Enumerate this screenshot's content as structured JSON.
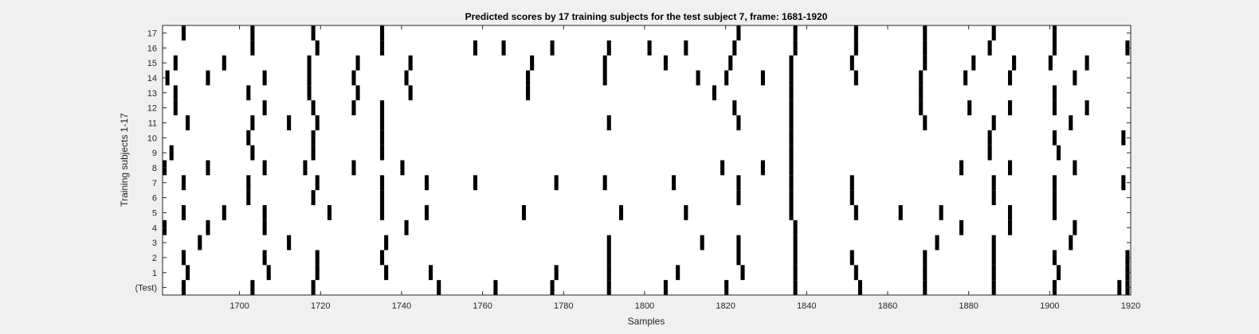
{
  "chart_data": {
    "type": "heatmap",
    "title": "Predicted scores by 17 training subjects for the test subject 7, frame: 1681-1920",
    "xlabel": "Samples",
    "ylabel": "Training subjects 1-17",
    "xlim": [
      1681,
      1920
    ],
    "x_ticks": [
      1700,
      1720,
      1740,
      1760,
      1780,
      1800,
      1820,
      1840,
      1860,
      1880,
      1900,
      1920
    ],
    "y_tick_labels": [
      "(Test)",
      "1",
      "2",
      "3",
      "4",
      "5",
      "6",
      "7",
      "8",
      "9",
      "10",
      "11",
      "12",
      "13",
      "14",
      "15",
      "16",
      "17"
    ],
    "grid": false,
    "colors": {
      "active": "#000000",
      "background": "#ffffff",
      "figure": "#f0f0f0"
    },
    "series": [
      {
        "name": "(Test)",
        "values": [
          1686,
          1703,
          1718,
          1749,
          1763,
          1777,
          1791,
          1805,
          1820,
          1837,
          1853,
          1869,
          1886,
          1901,
          1917,
          1919
        ]
      },
      {
        "name": "1",
        "values": [
          1687,
          1707,
          1719,
          1736,
          1747,
          1778,
          1791,
          1808,
          1824,
          1837,
          1852,
          1869,
          1886,
          1902,
          1919
        ]
      },
      {
        "name": "2",
        "values": [
          1686,
          1706,
          1719,
          1735,
          1791,
          1823,
          1837,
          1851,
          1869,
          1886,
          1901,
          1919
        ]
      },
      {
        "name": "3",
        "values": [
          1690,
          1712,
          1736,
          1791,
          1814,
          1823,
          1837,
          1872,
          1886,
          1905
        ]
      },
      {
        "name": "4",
        "values": [
          1681,
          1692,
          1706,
          1741,
          1837,
          1878,
          1890,
          1906
        ]
      },
      {
        "name": "5",
        "values": [
          1686,
          1696,
          1706,
          1722,
          1735,
          1746,
          1770,
          1794,
          1810,
          1836,
          1852,
          1863,
          1873,
          1890,
          1901
        ]
      },
      {
        "name": "6",
        "values": [
          1702,
          1718,
          1735,
          1823,
          1836,
          1851,
          1886,
          1901
        ]
      },
      {
        "name": "7",
        "values": [
          1686,
          1702,
          1719,
          1735,
          1746,
          1758,
          1778,
          1790,
          1807,
          1823,
          1836,
          1851,
          1886,
          1901,
          1918
        ]
      },
      {
        "name": "8",
        "values": [
          1681,
          1692,
          1706,
          1716,
          1728,
          1740,
          1819,
          1829,
          1836,
          1878,
          1890,
          1906
        ]
      },
      {
        "name": "9",
        "values": [
          1683,
          1703,
          1718,
          1735,
          1836,
          1885,
          1902
        ]
      },
      {
        "name": "10",
        "values": [
          1702,
          1718,
          1735,
          1836,
          1885,
          1901,
          1918
        ]
      },
      {
        "name": "11",
        "values": [
          1687,
          1703,
          1712,
          1719,
          1735,
          1791,
          1823,
          1836,
          1869,
          1886,
          1905
        ]
      },
      {
        "name": "12",
        "values": [
          1684,
          1706,
          1718,
          1728,
          1735,
          1822,
          1836,
          1868,
          1880,
          1890,
          1901,
          1909
        ]
      },
      {
        "name": "13",
        "values": [
          1684,
          1702,
          1717,
          1729,
          1742,
          1771,
          1817,
          1836,
          1868,
          1901
        ]
      },
      {
        "name": "14",
        "values": [
          1682,
          1692,
          1706,
          1717,
          1728,
          1741,
          1771,
          1790,
          1813,
          1820,
          1829,
          1836,
          1852,
          1868,
          1879,
          1890,
          1906
        ]
      },
      {
        "name": "15",
        "values": [
          1684,
          1696,
          1717,
          1729,
          1742,
          1772,
          1790,
          1805,
          1821,
          1836,
          1851,
          1869,
          1881,
          1891,
          1900,
          1909
        ]
      },
      {
        "name": "16",
        "values": [
          1703,
          1719,
          1735,
          1758,
          1765,
          1777,
          1791,
          1801,
          1810,
          1822,
          1837,
          1852,
          1869,
          1885,
          1901,
          1919
        ]
      },
      {
        "name": "17",
        "values": [
          1686,
          1703,
          1718,
          1735,
          1823,
          1837,
          1852,
          1869,
          1886,
          1901
        ]
      }
    ]
  }
}
